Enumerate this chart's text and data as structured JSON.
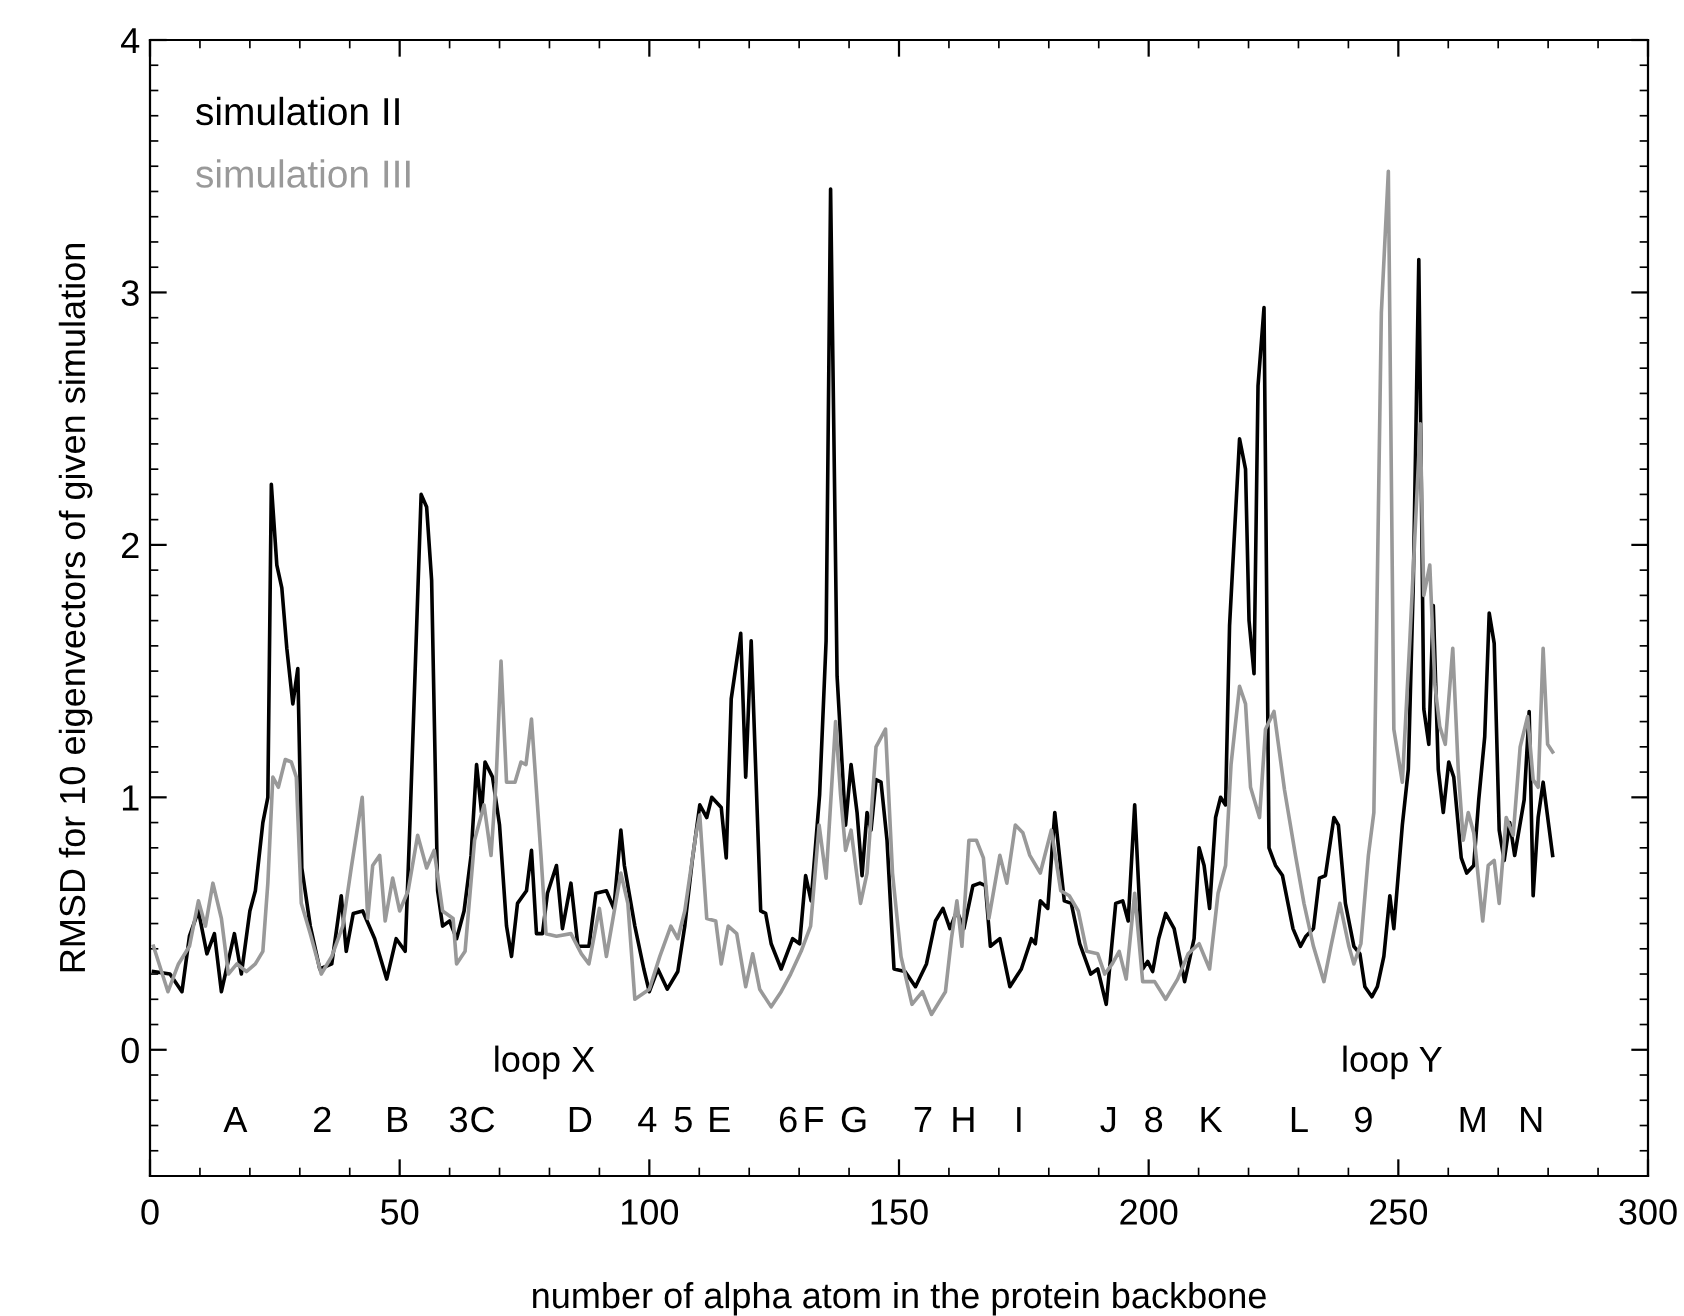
{
  "chart_data": {
    "type": "line",
    "xlabel": "number of alpha atom in the protein backbone",
    "ylabel": "RMSD for 10 eigenvectors of given simulation",
    "xlim": [
      0,
      300
    ],
    "ylim": [
      -0.5,
      4
    ],
    "xticks": [
      0,
      50,
      100,
      150,
      200,
      250,
      300
    ],
    "yticks": [
      0,
      1,
      2,
      3,
      4
    ],
    "grid": false,
    "legend": "top left",
    "series": [
      {
        "name": "simulation II",
        "color": "#000000",
        "x": [
          0.7,
          4,
          6.4,
          7.9,
          9.7,
          11.4,
          12.9,
          14.3,
          16.9,
          18.3,
          20,
          21.1,
          22.6,
          23.6,
          24.3,
          25.4,
          26.4,
          27.4,
          28.6,
          29.6,
          30.4,
          32.1,
          34,
          36.4,
          38.3,
          39.3,
          40.7,
          42.6,
          45,
          47.4,
          49.3,
          51.1,
          52.1,
          54.3,
          55.4,
          56.4,
          57.6,
          58.6,
          60,
          61.4,
          62.9,
          64.3,
          65.4,
          66.4,
          67.1,
          68.6,
          70,
          71.4,
          72.4,
          73.6,
          75.4,
          76.4,
          77.4,
          78.6,
          79.6,
          81.4,
          82.6,
          84.3,
          85.7,
          87.9,
          89.3,
          91.4,
          92.9,
          94.3,
          95,
          97.1,
          98.9,
          100,
          101.7,
          103.6,
          105.7,
          107.1,
          108.6,
          110.1,
          111.5,
          112.5,
          114.4,
          115.4,
          116.4,
          118.3,
          119.3,
          120.4,
          122.3,
          123.3,
          124.4,
          126.4,
          128.7,
          130.1,
          131.3,
          132.4,
          134.1,
          135.4,
          136.3,
          137.6,
          139.3,
          140.4,
          141.6,
          142.6,
          143.6,
          144.4,
          145.4,
          146.4,
          147.6,
          149,
          151.2,
          153.3,
          155.5,
          157.3,
          158.8,
          160.2,
          161.6,
          163,
          164.8,
          166.2,
          167.3,
          168.3,
          170.2,
          172.2,
          174.5,
          176.5,
          177.3,
          178.3,
          179.8,
          181.2,
          183.1,
          184.5,
          186.2,
          188.4,
          189.8,
          191.5,
          193.4,
          194.8,
          195.9,
          197.2,
          198.8,
          199.8,
          200.8,
          202,
          203.4,
          205.1,
          207.2,
          209.1,
          210.1,
          211.1,
          212.2,
          213.4,
          214.4,
          215.4,
          216.2,
          218.2,
          219.4,
          220.1,
          221.1,
          221.9,
          223.1,
          224.1,
          225.4,
          226.8,
          228.9,
          230.4,
          231.5,
          233,
          234.2,
          235.4,
          237.1,
          238,
          239.4,
          241.1,
          242.3,
          243.3,
          244.7,
          245.8,
          247.1,
          248.3,
          249.1,
          250.8,
          252,
          253,
          254.1,
          255.1,
          256.1,
          257,
          258,
          259,
          260.1,
          261.1,
          262.6,
          263.7,
          265.1,
          266.1,
          267.3,
          268.2,
          269.2,
          270.2,
          271.2,
          272.3,
          273.3,
          275.2,
          276.2,
          277,
          278,
          279,
          280.9
        ],
        "values": [
          0.31,
          0.3,
          0.23,
          0.45,
          0.55,
          0.38,
          0.46,
          0.23,
          0.46,
          0.3,
          0.55,
          0.63,
          0.9,
          1.0,
          2.24,
          1.92,
          1.83,
          1.59,
          1.37,
          1.51,
          0.72,
          0.49,
          0.32,
          0.34,
          0.61,
          0.39,
          0.54,
          0.55,
          0.44,
          0.28,
          0.44,
          0.39,
          0.92,
          2.2,
          2.15,
          1.86,
          0.63,
          0.49,
          0.51,
          0.44,
          0.55,
          0.77,
          1.13,
          0.94,
          1.14,
          1.08,
          0.89,
          0.49,
          0.37,
          0.58,
          0.63,
          0.79,
          0.46,
          0.46,
          0.62,
          0.73,
          0.48,
          0.66,
          0.41,
          0.41,
          0.62,
          0.63,
          0.56,
          0.87,
          0.73,
          0.49,
          0.32,
          0.23,
          0.32,
          0.24,
          0.31,
          0.49,
          0.75,
          0.97,
          0.92,
          1.0,
          0.96,
          0.76,
          1.39,
          1.65,
          1.08,
          1.62,
          0.55,
          0.54,
          0.42,
          0.32,
          0.44,
          0.42,
          0.69,
          0.59,
          1.01,
          1.62,
          3.41,
          1.48,
          0.89,
          1.13,
          0.94,
          0.69,
          0.94,
          0.87,
          1.07,
          1.06,
          0.83,
          0.32,
          0.31,
          0.25,
          0.34,
          0.51,
          0.56,
          0.48,
          0.55,
          0.48,
          0.65,
          0.66,
          0.65,
          0.41,
          0.44,
          0.25,
          0.32,
          0.44,
          0.42,
          0.59,
          0.56,
          0.94,
          0.59,
          0.58,
          0.42,
          0.3,
          0.32,
          0.18,
          0.58,
          0.59,
          0.51,
          0.97,
          0.32,
          0.35,
          0.31,
          0.44,
          0.54,
          0.48,
          0.27,
          0.44,
          0.8,
          0.73,
          0.56,
          0.92,
          1.0,
          0.97,
          1.68,
          2.42,
          2.3,
          1.7,
          1.49,
          2.63,
          2.94,
          0.8,
          0.73,
          0.69,
          0.48,
          0.41,
          0.45,
          0.48,
          0.68,
          0.69,
          0.92,
          0.89,
          0.58,
          0.41,
          0.38,
          0.25,
          0.21,
          0.25,
          0.37,
          0.61,
          0.48,
          0.89,
          1.11,
          1.85,
          3.13,
          1.35,
          1.21,
          1.76,
          1.11,
          0.94,
          1.14,
          1.08,
          0.76,
          0.7,
          0.73,
          0.99,
          1.24,
          1.73,
          1.61,
          0.87,
          0.75,
          0.9,
          0.77,
          0.99,
          1.34,
          0.61,
          0.92,
          1.06,
          0.77
        ]
      },
      {
        "name": "simulation III",
        "color": "#999999",
        "x": [
          0.7,
          3.6,
          5.7,
          7.9,
          9.7,
          11.1,
          12.6,
          14.3,
          15.7,
          17.4,
          19.3,
          21.1,
          22.6,
          23.6,
          24.6,
          25.7,
          27.1,
          28.3,
          29.3,
          30.3,
          32.1,
          34.3,
          36.4,
          38.6,
          40.3,
          42.5,
          43.6,
          44.6,
          46,
          47.1,
          48.6,
          50,
          51.7,
          53.6,
          55.4,
          56.9,
          58.6,
          60.7,
          61.4,
          63.1,
          65,
          66.9,
          68.3,
          69.3,
          70.3,
          71.4,
          73.1,
          74.3,
          75.3,
          76.4,
          78.3,
          79.3,
          81.4,
          84.3,
          86.4,
          87.9,
          90,
          91.4,
          94.3,
          95.7,
          97.1,
          100,
          102.1,
          104.3,
          105.7,
          107.1,
          109.3,
          110.1,
          111.5,
          113.3,
          114.4,
          115.8,
          117.5,
          119.3,
          120.7,
          122.1,
          124.4,
          126.4,
          128.3,
          130.4,
          132.3,
          134,
          135.4,
          137.3,
          138.3,
          139.3,
          140.4,
          142.3,
          143.6,
          145.4,
          147.3,
          148.7,
          150.4,
          152.6,
          154.7,
          156.5,
          159.3,
          160.5,
          161.6,
          162.6,
          164,
          165.5,
          166.9,
          168,
          170.2,
          171.6,
          173.3,
          174.8,
          176.2,
          178.3,
          180.5,
          182.4,
          184.1,
          185.9,
          187.6,
          189.8,
          191.2,
          192.7,
          194.1,
          195.5,
          197.2,
          198.8,
          201.2,
          203.4,
          205.8,
          207.9,
          210.1,
          212.2,
          213.9,
          215.4,
          216.5,
          218.2,
          219.4,
          220.4,
          222.2,
          223.4,
          225.1,
          227.2,
          229.4,
          231.1,
          233,
          235.1,
          236.5,
          238.3,
          240.1,
          241.1,
          242.5,
          244,
          245.1,
          246.6,
          248,
          249.1,
          250.8,
          252.3,
          254.4,
          255.1,
          256.3,
          257.3,
          258.3,
          259.4,
          260.9,
          262,
          263,
          264,
          265.1,
          266.9,
          268,
          269.2,
          270.2,
          271.6,
          273,
          274.4,
          275.9,
          277,
          278,
          279,
          279.9,
          280.9
        ],
        "values": [
          0.41,
          0.23,
          0.34,
          0.41,
          0.59,
          0.49,
          0.66,
          0.52,
          0.3,
          0.34,
          0.31,
          0.34,
          0.39,
          0.66,
          1.08,
          1.04,
          1.15,
          1.14,
          1.08,
          0.58,
          0.46,
          0.3,
          0.37,
          0.49,
          0.72,
          1.0,
          0.52,
          0.73,
          0.77,
          0.51,
          0.68,
          0.55,
          0.63,
          0.85,
          0.72,
          0.79,
          0.55,
          0.52,
          0.34,
          0.39,
          0.83,
          0.97,
          0.77,
          1.06,
          1.54,
          1.06,
          1.06,
          1.14,
          1.13,
          1.31,
          0.77,
          0.46,
          0.45,
          0.46,
          0.38,
          0.34,
          0.56,
          0.37,
          0.7,
          0.58,
          0.2,
          0.24,
          0.37,
          0.49,
          0.44,
          0.55,
          0.85,
          0.93,
          0.52,
          0.51,
          0.34,
          0.49,
          0.46,
          0.25,
          0.38,
          0.24,
          0.17,
          0.23,
          0.3,
          0.39,
          0.49,
          0.89,
          0.68,
          1.3,
          1.01,
          0.79,
          0.87,
          0.58,
          0.7,
          1.2,
          1.27,
          0.7,
          0.37,
          0.18,
          0.23,
          0.14,
          0.23,
          0.44,
          0.59,
          0.41,
          0.83,
          0.83,
          0.76,
          0.52,
          0.77,
          0.66,
          0.89,
          0.86,
          0.77,
          0.7,
          0.87,
          0.63,
          0.61,
          0.55,
          0.39,
          0.38,
          0.3,
          0.34,
          0.39,
          0.28,
          0.62,
          0.27,
          0.27,
          0.2,
          0.28,
          0.38,
          0.42,
          0.32,
          0.62,
          0.73,
          1.13,
          1.44,
          1.37,
          1.04,
          0.92,
          1.27,
          1.34,
          1.03,
          0.77,
          0.58,
          0.41,
          0.27,
          0.41,
          0.58,
          0.41,
          0.34,
          0.42,
          0.77,
          0.94,
          2.92,
          3.48,
          1.27,
          1.06,
          1.62,
          2.48,
          1.8,
          1.92,
          1.45,
          1.28,
          1.21,
          1.59,
          1.11,
          0.83,
          0.94,
          0.86,
          0.51,
          0.73,
          0.75,
          0.58,
          0.92,
          0.85,
          1.2,
          1.32,
          1.07,
          1.04,
          1.59,
          1.21,
          1.18
        ]
      }
    ],
    "annotations": [
      "A",
      "2",
      "B",
      "3",
      "C",
      "D",
      "4",
      "5",
      "E",
      "6",
      "F",
      "G",
      "7",
      "H",
      "I",
      "J",
      "8",
      "K",
      "L",
      "9",
      "M",
      "N",
      "loop X",
      "loop Y"
    ]
  }
}
